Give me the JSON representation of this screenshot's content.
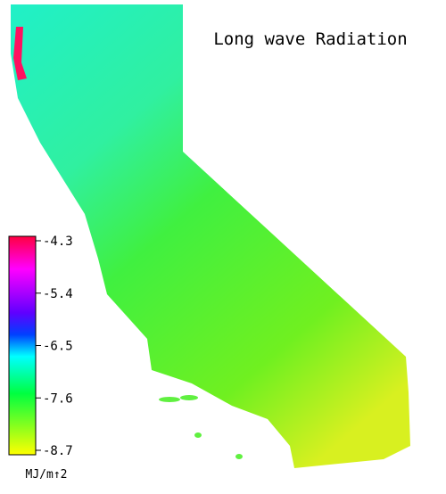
{
  "title": "Long wave Radiation",
  "colorbar": {
    "ticks": [
      -4.3,
      -5.4,
      -6.5,
      -7.6,
      -8.7
    ],
    "unit": "MJ/m↑2"
  }
}
